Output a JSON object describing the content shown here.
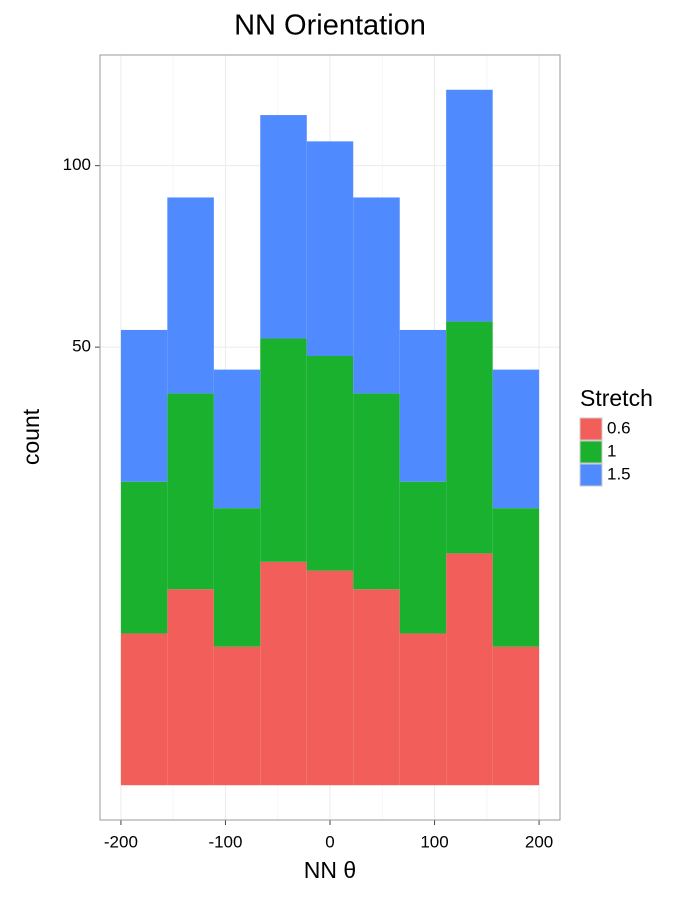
{
  "chart_data": {
    "type": "histogram",
    "title": "NN Orientation",
    "xlabel": "NN θ",
    "ylabel": "count",
    "bins": [
      -200,
      -155.6,
      -111.1,
      -66.7,
      -22.2,
      22.2,
      66.7,
      111.1,
      155.6,
      200
    ],
    "series": [
      {
        "name": "0.6",
        "color": "#f25f5a",
        "values": [
          6,
          10,
          5,
          13,
          12,
          10,
          6,
          14,
          5
        ]
      },
      {
        "name": "1",
        "color": "#19b12e",
        "values": [
          6,
          10,
          5,
          13,
          12,
          10,
          6,
          14,
          5
        ]
      },
      {
        "name": "1.5",
        "color": "#4f8bfe",
        "values": [
          6,
          10,
          5,
          13,
          12,
          10,
          6,
          14,
          5
        ]
      }
    ],
    "legend_title": "Stretch",
    "legend_position": "right",
    "xlim": [
      -200,
      200
    ],
    "xticks": [
      -200,
      -100,
      0,
      100,
      200
    ],
    "ylim": [
      0,
      126
    ],
    "yticks": [
      50,
      100
    ],
    "y_scale": "sqrt",
    "grid": true
  }
}
